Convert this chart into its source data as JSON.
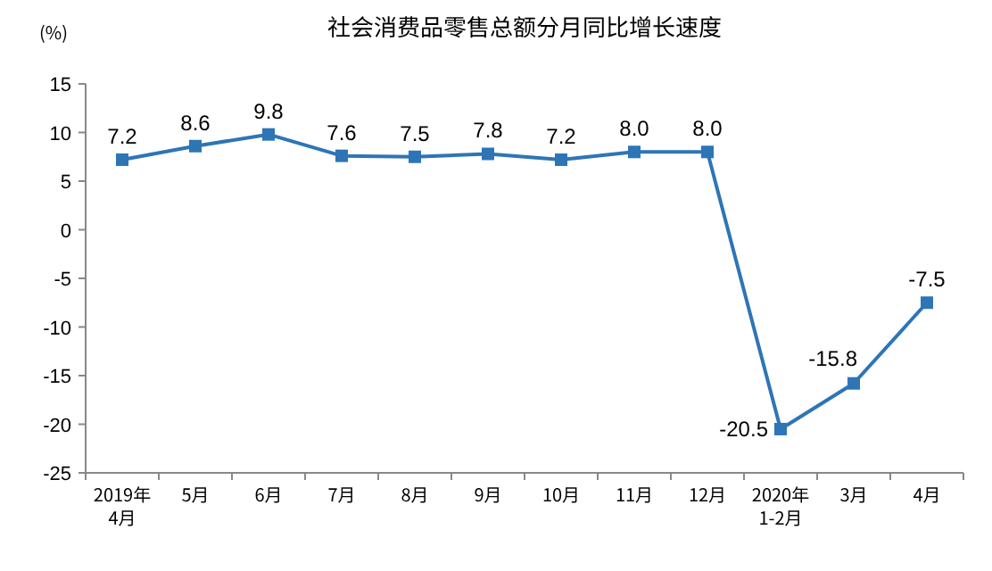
{
  "chart_data": {
    "type": "line",
    "title": "社会消费品零售总额分月同比增长速度",
    "ylabel": "(%)",
    "categories": [
      "2019年\n4月",
      "5月",
      "6月",
      "7月",
      "8月",
      "9月",
      "10月",
      "11月",
      "12月",
      "2020年\n1-2月",
      "3月",
      "4月"
    ],
    "series": [
      {
        "color": "#2e75b6",
        "values": [
          7.2,
          8.6,
          9.8,
          7.6,
          7.5,
          7.8,
          7.2,
          8.0,
          8.0,
          -20.5,
          -15.8,
          -7.5
        ]
      }
    ],
    "value_labels": [
      "7.2",
      "8.6",
      "9.8",
      "7.6",
      "7.5",
      "7.8",
      "7.2",
      "8.0",
      "8.0",
      "-20.5",
      "-15.8",
      "-7.5"
    ],
    "ylim": [
      -25,
      15
    ],
    "yticks": [
      -25,
      -20,
      -15,
      -10,
      -5,
      0,
      5,
      10,
      15
    ],
    "marker": "square",
    "line_style": "solid",
    "grid": false
  }
}
